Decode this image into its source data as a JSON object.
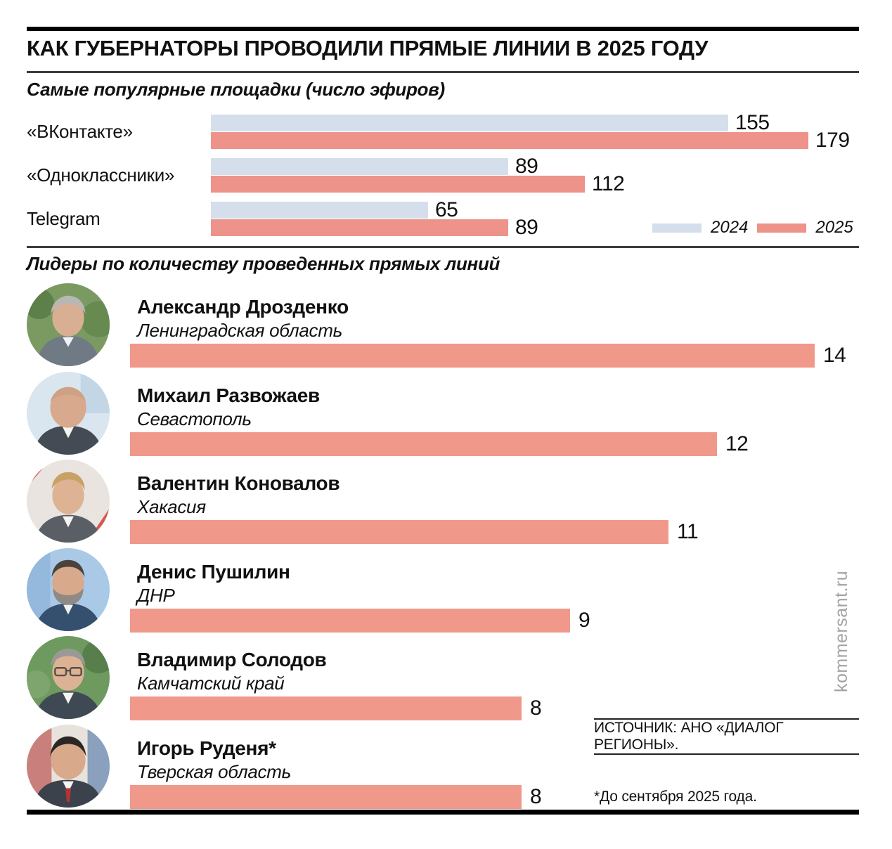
{
  "title": "КАК ГУБЕРНАТОРЫ ПРОВОДИЛИ ПРЯМЫЕ ЛИНИИ В 2025 ГОДУ",
  "source": "ИСТОЧНИК: АНО «ДИАЛОГ РЕГИОНЫ».",
  "footnote": "*До сентября 2025 года.",
  "watermark": "kommersant.ru",
  "colors": {
    "bar_2024": "#d4dfeb",
    "bar_2025": "#ed938a",
    "leader_bar": "#f0998b",
    "rule_dark": "#3c3c3c",
    "black": "#000000",
    "watermark_gray": "#a3a3a3",
    "text": "#111111"
  },
  "chart_data": [
    {
      "type": "bar",
      "orientation": "horizontal",
      "title": "Самые популярные площадки (число эфиров)",
      "categories": [
        "«ВКонтакте»",
        "«Одноклассники»",
        "Telegram"
      ],
      "series": [
        {
          "name": "2024",
          "color": "#d4dfeb",
          "values": [
            155,
            89,
            65
          ]
        },
        {
          "name": "2025",
          "color": "#ed938a",
          "values": [
            179,
            112,
            89
          ]
        }
      ],
      "xlim": [
        0,
        179
      ],
      "value_labels": true,
      "legend_position": "bottom-right",
      "grid": false
    },
    {
      "type": "bar",
      "orientation": "horizontal",
      "title": "Лидеры по количеству проведенных прямых линий",
      "xlim": [
        0,
        14
      ],
      "value_labels": true,
      "grid": false,
      "rows": [
        {
          "name": "Александр Дрозденко",
          "region": "Ленинградская область",
          "value": 14
        },
        {
          "name": "Михаил Развожаев",
          "region": "Севастополь",
          "value": 12
        },
        {
          "name": "Валентин Коновалов",
          "region": "Хакасия",
          "value": 11
        },
        {
          "name": "Денис Пушилин",
          "region": "ДНР",
          "value": 9
        },
        {
          "name": "Владимир Солодов",
          "region": "Камчатский край",
          "value": 8
        },
        {
          "name": "Игорь Руденя*",
          "region": "Тверская область",
          "value": 8
        }
      ]
    }
  ]
}
